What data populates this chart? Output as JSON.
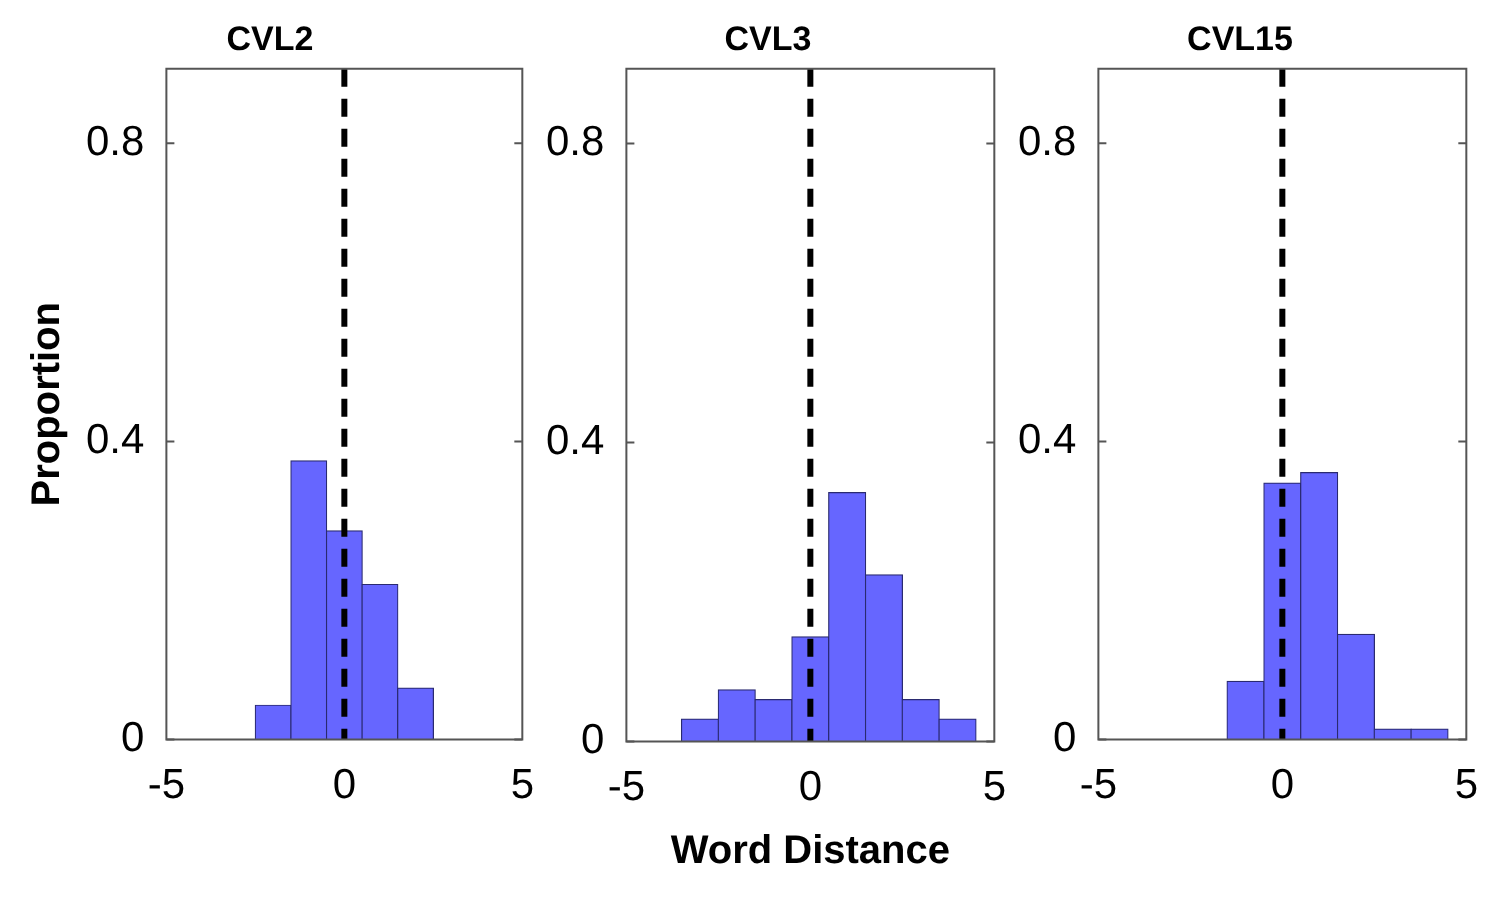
{
  "chart_data": [
    {
      "type": "histogram",
      "title": "CVL2",
      "ylabel": "Proportion",
      "bins": [
        -2.5,
        -1.5,
        -0.5,
        0.5,
        1.5,
        2.5
      ],
      "values": [
        0.046,
        0.374,
        0.28,
        0.208,
        0.069
      ],
      "color": "#6666ff",
      "xlim": [
        -5,
        5
      ],
      "xticks": [
        -5,
        0,
        5
      ],
      "ylim": [
        0,
        0.9
      ],
      "yticks": [
        0,
        0.4,
        0.8
      ],
      "ref_lines": [
        {
          "axis": "x",
          "value": 0,
          "color": "#000000",
          "line_style": "dashed"
        }
      ]
    },
    {
      "type": "histogram",
      "title": "CVL3",
      "xlabel": "Word Distance",
      "bins": [
        -3.5,
        -2.5,
        -1.5,
        -0.5,
        0.5,
        1.5,
        2.5,
        3.5,
        4.5
      ],
      "values": [
        0.03,
        0.069,
        0.056,
        0.14,
        0.333,
        0.223,
        0.056,
        0.03
      ],
      "color": "#6666ff",
      "xlim": [
        -5,
        5
      ],
      "xticks": [
        -5,
        0,
        5
      ],
      "ylim": [
        0,
        0.9
      ],
      "yticks": [
        0,
        0.4,
        0.8
      ],
      "ref_lines": [
        {
          "axis": "x",
          "value": 0,
          "color": "#000000",
          "line_style": "dashed"
        }
      ]
    },
    {
      "type": "histogram",
      "title": "CVL15",
      "bins": [
        -1.5,
        -0.5,
        0.5,
        1.5,
        2.5,
        3.5,
        4.5
      ],
      "values": [
        0.078,
        0.344,
        0.358,
        0.141,
        0.014,
        0.014
      ],
      "color": "#6666ff",
      "xlim": [
        -5,
        5
      ],
      "xticks": [
        -5,
        0,
        5
      ],
      "ylim": [
        0,
        0.9
      ],
      "yticks": [
        0,
        0.4,
        0.8
      ],
      "ref_lines": [
        {
          "axis": "x",
          "value": 0,
          "color": "#000000",
          "line_style": "dashed"
        }
      ]
    }
  ]
}
